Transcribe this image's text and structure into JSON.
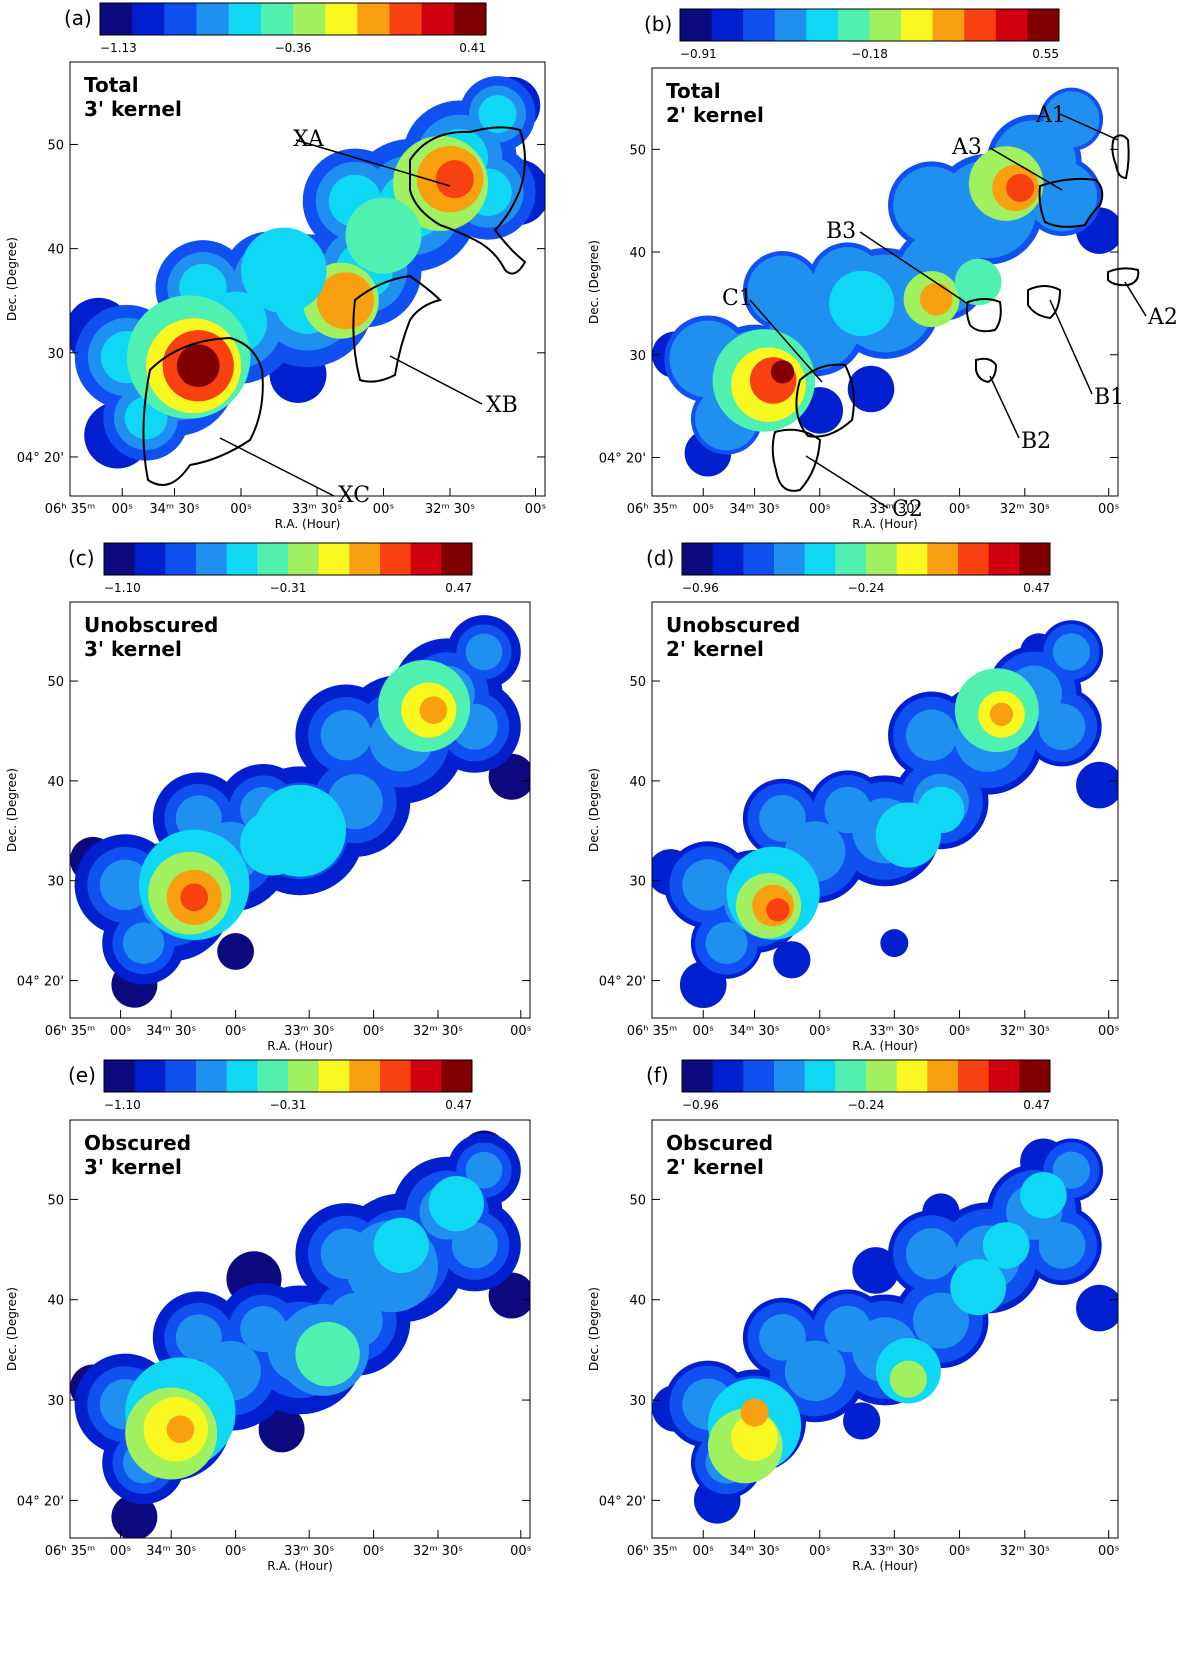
{
  "colormap": [
    "#0d0a80",
    "#0020d0",
    "#1050f0",
    "#2090f0",
    "#10d8f4",
    "#50f0b0",
    "#a0f060",
    "#f8f820",
    "#f8a010",
    "#f84010",
    "#d00010",
    "#800000"
  ],
  "panels": [
    {
      "id": "a",
      "label": "(a)",
      "title_line1": "Total",
      "title_line2": "3' kernel",
      "cbar_labels": [
        "−1.13",
        "−0.36",
        "0.41"
      ],
      "ytick_labels": [
        "04° 20'",
        "30",
        "40",
        "50"
      ],
      "xtick_labels": [
        "06ʰ 35ᵐ",
        "00ˢ",
        "34ᵐ 30ˢ",
        "00ˢ",
        "33ᵐ 30ˢ",
        "00ˢ",
        "32ᵐ 30ˢ",
        "00ˢ"
      ],
      "xlabel": "R.A. (Hour)",
      "ylabel": "Dec. (Degree)",
      "annotations": [
        "XA",
        "XB",
        "XC"
      ]
    },
    {
      "id": "b",
      "label": "(b)",
      "title_line1": "Total",
      "title_line2": "2' kernel",
      "cbar_labels": [
        "−0.91",
        "−0.18",
        "0.55"
      ],
      "ytick_labels": [
        "04° 20'",
        "30",
        "40",
        "50"
      ],
      "xtick_labels": [
        "06ʰ 35ᵐ",
        "00ˢ",
        "34ᵐ 30ˢ",
        "00ˢ",
        "33ᵐ 30ˢ",
        "00ˢ",
        "32ᵐ 30ˢ",
        "00ˢ"
      ],
      "xlabel": "R.A. (Hour)",
      "ylabel": "Dec. (Degree)",
      "annotations": [
        "A1",
        "A3",
        "B3",
        "C1",
        "A2",
        "B1",
        "B2",
        "C2"
      ]
    },
    {
      "id": "c",
      "label": "(c)",
      "title_line1": "Unobscured",
      "title_line2": "3' kernel",
      "cbar_labels": [
        "−1.10",
        "−0.31",
        "0.47"
      ],
      "ytick_labels": [
        "04° 20'",
        "30",
        "40",
        "50"
      ],
      "xtick_labels": [
        "06ʰ 35ᵐ",
        "00ˢ",
        "34ᵐ 30ˢ",
        "00ˢ",
        "33ᵐ 30ˢ",
        "00ˢ",
        "32ᵐ 30ˢ",
        "00ˢ"
      ],
      "xlabel": "R.A. (Hour)",
      "ylabel": "Dec. (Degree)",
      "annotations": []
    },
    {
      "id": "d",
      "label": "(d)",
      "title_line1": "Unobscured",
      "title_line2": "2' kernel",
      "cbar_labels": [
        "−0.96",
        "−0.24",
        "0.47"
      ],
      "ytick_labels": [
        "04° 20'",
        "30",
        "40",
        "50"
      ],
      "xtick_labels": [
        "06ʰ 35ᵐ",
        "00ˢ",
        "34ᵐ 30ˢ",
        "00ˢ",
        "33ᵐ 30ˢ",
        "00ˢ",
        "32ᵐ 30ˢ",
        "00ˢ"
      ],
      "xlabel": "R.A. (Hour)",
      "ylabel": "Dec. (Degree)",
      "annotations": []
    },
    {
      "id": "e",
      "label": "(e)",
      "title_line1": "Obscured",
      "title_line2": "3' kernel",
      "cbar_labels": [
        "−1.10",
        "−0.31",
        "0.47"
      ],
      "ytick_labels": [
        "04° 20'",
        "30",
        "40",
        "50"
      ],
      "xtick_labels": [
        "06ʰ 35ᵐ",
        "00ˢ",
        "34ᵐ 30ˢ",
        "00ˢ",
        "33ᵐ 30ˢ",
        "00ˢ",
        "32ᵐ 30ˢ",
        "00ˢ"
      ],
      "xlabel": "R.A. (Hour)",
      "ylabel": "Dec. (Degree)",
      "annotations": []
    },
    {
      "id": "f",
      "label": "(f)",
      "title_line1": "Obscured",
      "title_line2": "2' kernel",
      "cbar_labels": [
        "−0.96",
        "−0.24",
        "0.47"
      ],
      "ytick_labels": [
        "04° 20'",
        "30",
        "40",
        "50"
      ],
      "xtick_labels": [
        "06ʰ 35ᵐ",
        "00ˢ",
        "34ᵐ 30ˢ",
        "00ˢ",
        "33ᵐ 30ˢ",
        "00ˢ",
        "32ᵐ 30ˢ",
        "00ˢ"
      ],
      "xlabel": "R.A. (Hour)",
      "ylabel": "Dec. (Degree)",
      "annotations": []
    }
  ]
}
